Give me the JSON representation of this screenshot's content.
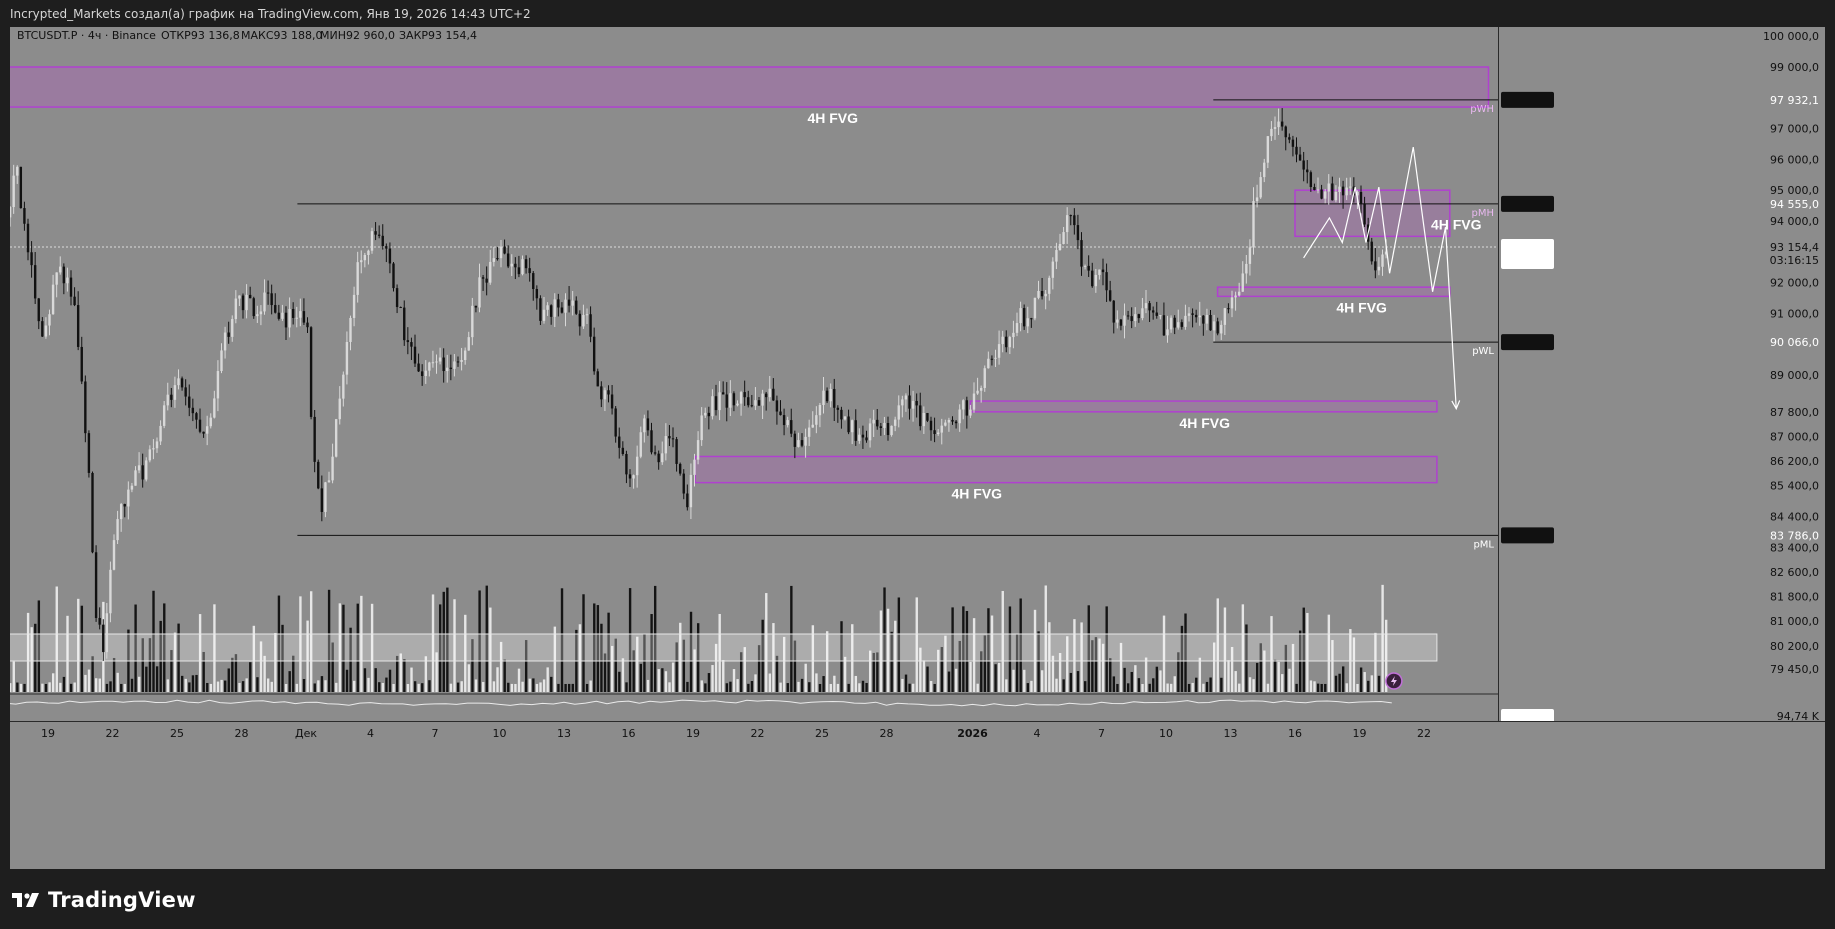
{
  "header": {
    "text": "Incrypted_Markets создал(а) график на TradingView.com, Янв 19, 2026 14:43 UTC+2"
  },
  "legend": {
    "symbol": "BTCUSDT.P · 4ч · Binance",
    "open": "ОТКР93 136,8",
    "high": "МАКС93 188,0",
    "low": "МИН92 960,0",
    "close": "ЗАКР93 154,4"
  },
  "footer": {
    "brand": "TradingView",
    "icon": "tradingview-logo-icon"
  },
  "colors": {
    "background": "#8c8c8c",
    "frame": "#1e1e1e",
    "fvg_fill": "#9b7aa0",
    "fvg_stroke": "#b040d0",
    "candle_up": "#d9d9d9",
    "candle_down": "#111111",
    "line": "#111111"
  },
  "chart_data": {
    "type": "candlestick",
    "symbol": "BTCUSDT.P",
    "timeframe": "4ч",
    "exchange": "Binance",
    "ylim": [
      78700,
      100300
    ],
    "y_ticks": [
      "100 000,0",
      "99 000,0",
      "97 000,0",
      "96 000,0",
      "95 000,0",
      "94 000,0",
      "92 000,0",
      "91 000,0",
      "89 000,0",
      "87 800,0",
      "87 000,0",
      "86 200,0",
      "85 400,0",
      "84 400,0",
      "83 400,0",
      "82 600,0",
      "81 800,0",
      "81 000,0",
      "80 200,0",
      "79 450,0"
    ],
    "y_tick_values": [
      100000,
      99000,
      97000,
      96000,
      95000,
      94000,
      92000,
      91000,
      89000,
      87800,
      87000,
      86200,
      85400,
      84400,
      83400,
      82600,
      81800,
      81000,
      80200,
      79450
    ],
    "x_ticks": [
      "19",
      "22",
      "25",
      "28",
      "Дек",
      "4",
      "7",
      "10",
      "13",
      "16",
      "19",
      "22",
      "25",
      "28",
      "2026",
      "4",
      "7",
      "10",
      "13",
      "16",
      "19",
      "22"
    ],
    "x_tick_days": [
      -12,
      -9,
      -6,
      -3,
      0,
      3,
      6,
      9,
      12,
      15,
      18,
      21,
      24,
      27,
      31,
      34,
      37,
      40,
      43,
      46,
      49,
      52
    ],
    "price_labels": [
      {
        "text": "97 932,1",
        "value": 97932.1
      },
      {
        "text": "94 555,0",
        "value": 94555.0
      },
      {
        "text": "93 154,4",
        "value": 93154.4,
        "sub": "03:16:15"
      },
      {
        "text": "90 066,0",
        "value": 90066.0
      },
      {
        "text": "83 786,0",
        "value": 83786.0
      }
    ],
    "zones": [
      {
        "label": "4H FVG",
        "from_day": -14,
        "to_day": 55,
        "low": 97700,
        "high": 99000,
        "label_day": 24.5,
        "label_pos": "below"
      },
      {
        "label": "4H FVG",
        "from_day": 46,
        "to_day": 53.2,
        "low": 93500,
        "high": 95000,
        "label_day": 53.5,
        "label_pos": "right"
      },
      {
        "label": "4H FVG",
        "from_day": 42.4,
        "to_day": 53.2,
        "low": 91550,
        "high": 91850,
        "label_day": 49.1,
        "label_pos": "below"
      },
      {
        "label": "4H FVG",
        "from_day": 30.9,
        "to_day": 52.6,
        "low": 87800,
        "high": 88150,
        "label_day": 41.8,
        "label_pos": "below"
      },
      {
        "label": "4H FVG",
        "from_day": 18.1,
        "to_day": 52.6,
        "low": 85500,
        "high": 86350,
        "label_day": 31.2,
        "label_pos": "below"
      }
    ],
    "levels": [
      {
        "label": "pWH",
        "value": 97932.1,
        "from_day": 42.2,
        "to_day": 55
      },
      {
        "label": "pMH",
        "value": 94555.0,
        "from_day": -0.4,
        "to_day": 55
      },
      {
        "label": "pWL",
        "value": 90066.0,
        "from_day": 42.2,
        "to_day": 55
      },
      {
        "label": "pML",
        "value": 83786.0,
        "from_day": -0.4,
        "to_day": 55
      }
    ],
    "current_price": 93154.4,
    "projection_path": [
      [
        46.4,
        92800
      ],
      [
        47.6,
        94100
      ],
      [
        48.2,
        93300
      ],
      [
        48.8,
        95100
      ],
      [
        49.3,
        93300
      ],
      [
        49.9,
        95100
      ],
      [
        50.4,
        92300
      ],
      [
        51.5,
        96400
      ],
      [
        52.4,
        91700
      ],
      [
        53.0,
        93800
      ],
      [
        53.5,
        87900
      ]
    ],
    "candles_path": [
      [
        -14,
        93500
      ],
      [
        -13.4,
        95800
      ],
      [
        -12.8,
        93000
      ],
      [
        -12.2,
        90000
      ],
      [
        -11.5,
        92500
      ],
      [
        -10.7,
        91500
      ],
      [
        -10.0,
        86000
      ],
      [
        -9.7,
        81500
      ],
      [
        -9.3,
        79800
      ],
      [
        -9.1,
        82000
      ],
      [
        -8.7,
        84500
      ],
      [
        -8.0,
        85500
      ],
      [
        -7.2,
        86200
      ],
      [
        -6.5,
        87800
      ],
      [
        -5.9,
        89000
      ],
      [
        -5.1,
        87500
      ],
      [
        -4.5,
        87000
      ],
      [
        -3.7,
        90000
      ],
      [
        -3.0,
        91500
      ],
      [
        -2.4,
        91200
      ],
      [
        -1.8,
        91500
      ],
      [
        -1.2,
        90700
      ],
      [
        -0.6,
        91000
      ],
      [
        -0.2,
        91300
      ],
      [
        0.2,
        90200
      ],
      [
        0.4,
        86500
      ],
      [
        0.8,
        84300
      ],
      [
        1.3,
        86500
      ],
      [
        1.9,
        89500
      ],
      [
        2.6,
        93000
      ],
      [
        3.5,
        93800
      ],
      [
        4.1,
        92200
      ],
      [
        4.7,
        90300
      ],
      [
        5.3,
        89200
      ],
      [
        6.0,
        89300
      ],
      [
        6.6,
        89400
      ],
      [
        7.4,
        89600
      ],
      [
        8.1,
        91800
      ],
      [
        8.7,
        92500
      ],
      [
        9.3,
        93000
      ],
      [
        9.9,
        92600
      ],
      [
        10.5,
        92300
      ],
      [
        11.0,
        91000
      ],
      [
        11.8,
        91300
      ],
      [
        12.7,
        91000
      ],
      [
        13.2,
        90700
      ],
      [
        13.6,
        88500
      ],
      [
        14.2,
        88200
      ],
      [
        14.7,
        86500
      ],
      [
        15.3,
        85500
      ],
      [
        15.8,
        87500
      ],
      [
        16.4,
        86400
      ],
      [
        17.1,
        87000
      ],
      [
        17.8,
        84600
      ],
      [
        18.0,
        86000
      ],
      [
        18.6,
        87800
      ],
      [
        19.3,
        88300
      ],
      [
        20.2,
        88200
      ],
      [
        21.0,
        88000
      ],
      [
        21.7,
        88800
      ],
      [
        22.3,
        87500
      ],
      [
        23.0,
        86600
      ],
      [
        23.8,
        87500
      ],
      [
        24.4,
        88600
      ],
      [
        24.9,
        87400
      ],
      [
        25.6,
        87200
      ],
      [
        26.4,
        87200
      ],
      [
        27.3,
        87400
      ],
      [
        28.0,
        88100
      ],
      [
        28.6,
        87600
      ],
      [
        29.3,
        87400
      ],
      [
        30.0,
        87300
      ],
      [
        30.5,
        88000
      ],
      [
        31.1,
        88000
      ],
      [
        31.7,
        89000
      ],
      [
        32.4,
        90000
      ],
      [
        33.3,
        90800
      ],
      [
        34.1,
        91300
      ],
      [
        34.7,
        92200
      ],
      [
        35.2,
        93600
      ],
      [
        35.5,
        94300
      ],
      [
        35.9,
        93700
      ],
      [
        36.4,
        92000
      ],
      [
        37.0,
        92400
      ],
      [
        37.5,
        91200
      ],
      [
        38.0,
        90600
      ],
      [
        38.6,
        90700
      ],
      [
        39.3,
        91300
      ],
      [
        39.9,
        90600
      ],
      [
        40.6,
        90500
      ],
      [
        41.3,
        90700
      ],
      [
        42.1,
        90700
      ],
      [
        42.5,
        90400
      ],
      [
        42.9,
        91100
      ],
      [
        43.3,
        91400
      ],
      [
        43.8,
        92400
      ],
      [
        44.2,
        94500
      ],
      [
        44.6,
        95500
      ],
      [
        44.9,
        96800
      ],
      [
        45.2,
        97400
      ],
      [
        45.7,
        96900
      ],
      [
        46.1,
        96600
      ],
      [
        46.5,
        96000
      ],
      [
        46.8,
        95200
      ],
      [
        47.3,
        94800
      ],
      [
        47.7,
        95000
      ],
      [
        48.1,
        94900
      ],
      [
        48.5,
        95000
      ],
      [
        49.0,
        94700
      ],
      [
        49.3,
        94300
      ],
      [
        49.6,
        92500
      ],
      [
        49.9,
        92500
      ],
      [
        50.2,
        93100
      ]
    ],
    "volume_band": {
      "from_day": -14,
      "to_day": 52.6
    }
  }
}
